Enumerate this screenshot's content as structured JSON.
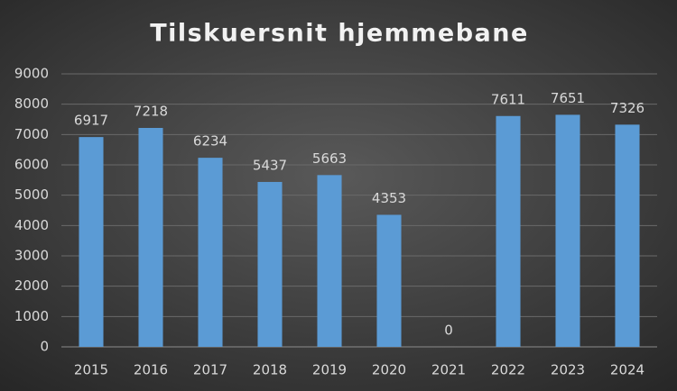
{
  "chart_data": {
    "type": "bar",
    "title": "Tilskuersnit hjemmebane",
    "categories": [
      "2015",
      "2016",
      "2017",
      "2018",
      "2019",
      "2020",
      "2021",
      "2022",
      "2023",
      "2024"
    ],
    "values": [
      6917,
      7218,
      6234,
      5437,
      5663,
      4353,
      0,
      7611,
      7651,
      7326
    ],
    "color": "#5b9bd5",
    "ylim": [
      0,
      9000
    ],
    "yticks": [
      0,
      1000,
      2000,
      3000,
      4000,
      5000,
      6000,
      7000,
      8000,
      9000
    ],
    "grid": true
  }
}
